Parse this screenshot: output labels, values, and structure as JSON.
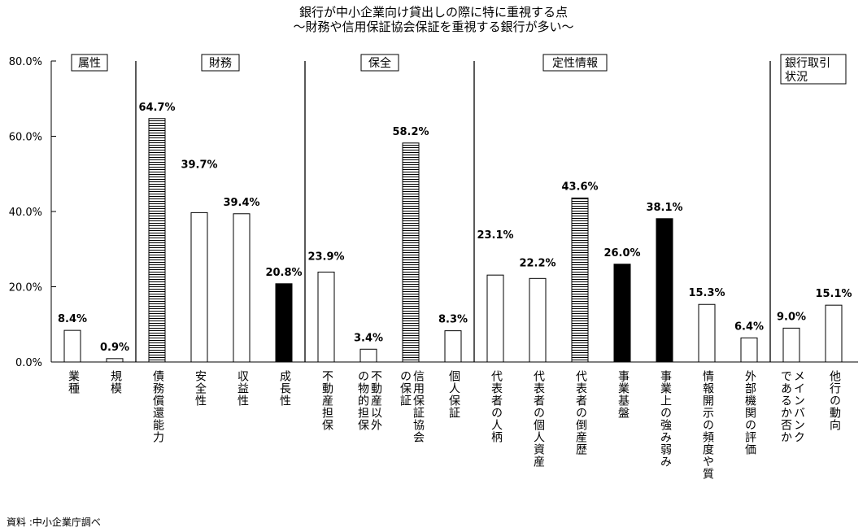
{
  "chart_data": {
    "type": "bar",
    "title": "銀行が中小企業向け貸出しの際に特に重視する点",
    "subtitle": "～財務や信用保証協会保証を重視する銀行が多い～",
    "ylim": [
      0,
      80
    ],
    "yticks": [
      "0.0%",
      "20.0%",
      "40.0%",
      "60.0%",
      "80.0%"
    ],
    "grid": false,
    "groups": [
      {
        "label": "属性",
        "categories": [
          "業種",
          "規模"
        ]
      },
      {
        "label": "財務",
        "categories": [
          "債務償還能力",
          "安全性",
          "収益性",
          "成長性"
        ]
      },
      {
        "label": "保全",
        "categories": [
          "不動産担保",
          "不動産以外の物的担保",
          "信用保証協会の保証",
          "個人保証"
        ]
      },
      {
        "label": "定性情報",
        "categories": [
          "代表者の人柄",
          "代表者の個人資産",
          "代表者の倒産歴",
          "事業基盤",
          "事業上の強み弱み",
          "情報開示の頻度や質",
          "外部機関の評価"
        ]
      },
      {
        "label": "銀行取引状況",
        "categories": [
          "メインバンクであるか否か",
          "他行の動向"
        ]
      }
    ],
    "categories": [
      "業種",
      "規模",
      "債務償還能力",
      "安全性",
      "収益性",
      "成長性",
      "不動産担保",
      "不動産以外の物的担保",
      "信用保証協会の保証",
      "個人保証",
      "代表者の人柄",
      "代表者の個人資産",
      "代表者の倒産歴",
      "事業基盤",
      "事業上の強み弱み",
      "情報開示の頻度や質",
      "外部機関の評価",
      "メインバンクであるか否か",
      "他行の動向"
    ],
    "category_lines": [
      [
        "業種"
      ],
      [
        "規模"
      ],
      [
        "債務償還能力"
      ],
      [
        "安全性"
      ],
      [
        "収益性"
      ],
      [
        "成長性"
      ],
      [
        "不動産担保"
      ],
      [
        "不動産以外",
        "の物的担保"
      ],
      [
        "信用保証協会",
        "の保証"
      ],
      [
        "個人保証"
      ],
      [
        "代表者の人柄"
      ],
      [
        "代表者の個人資産"
      ],
      [
        "代表者の倒産歴"
      ],
      [
        "事業基盤"
      ],
      [
        "事業上の強み弱み"
      ],
      [
        "情報開示の頻度や質"
      ],
      [
        "外部機関の評価"
      ],
      [
        "メインバンク",
        "であるか否か"
      ],
      [
        "他行の動向"
      ]
    ],
    "values": [
      8.4,
      0.9,
      64.7,
      39.7,
      39.4,
      20.8,
      23.9,
      3.4,
      58.2,
      8.3,
      23.1,
      22.2,
      43.6,
      26.0,
      38.1,
      15.3,
      6.4,
      9.0,
      15.1
    ],
    "value_labels": [
      "8.4%",
      "0.9%",
      "64.7%",
      "39.7%",
      "39.4%",
      "20.8%",
      "23.9%",
      "3.4%",
      "58.2%",
      "8.3%",
      "23.1%",
      "22.2%",
      "43.6%",
      "26.0%",
      "38.1%",
      "15.3%",
      "6.4%",
      "9.0%",
      "15.1%"
    ],
    "fills": [
      "white",
      "white",
      "hatched",
      "white",
      "white",
      "black",
      "white",
      "white",
      "hatched",
      "white",
      "white",
      "white",
      "hatched",
      "black",
      "black",
      "white",
      "white",
      "white",
      "white"
    ]
  },
  "source_note": "資料 :中小企業庁調べ"
}
